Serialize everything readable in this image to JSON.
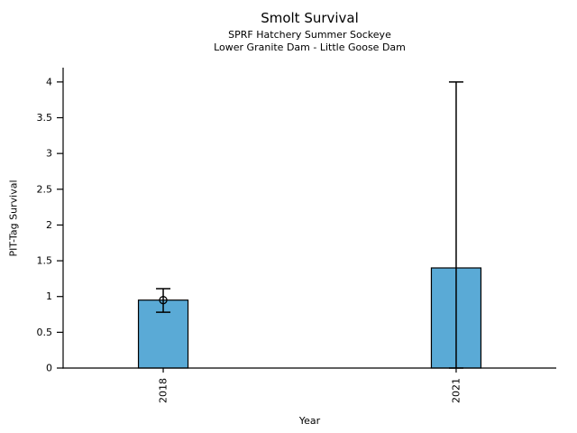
{
  "chart_data": {
    "type": "bar",
    "title": "Smolt Survival",
    "subtitle1": "SPRF Hatchery Summer Sockeye",
    "subtitle2": "Lower Granite Dam - Little Goose Dam",
    "xlabel": "Year",
    "ylabel": "PIT-Tag Survival",
    "categories": [
      "2018",
      "2021"
    ],
    "values": [
      0.95,
      1.4
    ],
    "error_low": [
      0.78,
      0.0
    ],
    "error_high": [
      1.11,
      4.0
    ],
    "point_estimates": [
      0.95,
      null
    ],
    "yticks": [
      0,
      0.5,
      1,
      1.5,
      2,
      2.5,
      3,
      3.5,
      4
    ],
    "ytick_labels": [
      "0",
      "0.5",
      "1",
      "1.5",
      "2",
      "2.5",
      "3",
      "3.5",
      "4"
    ],
    "ylim": [
      0,
      4.2
    ],
    "x_tick_rotation": 90,
    "grid": false,
    "legend": "none",
    "bar_color": "#5aaad6",
    "bar_edge_color": "#000000",
    "error_bar_color": "#000000",
    "marker": "open-circle"
  }
}
